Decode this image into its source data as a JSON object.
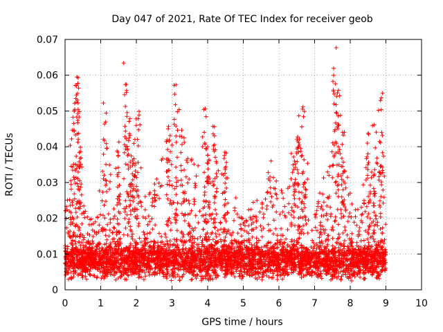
{
  "chart_data": {
    "type": "scatter",
    "title": "Day 047 of 2021, Rate Of TEC Index for receiver geob",
    "xlabel": "GPS time / hours",
    "ylabel": "ROTI / TECUs",
    "xlim": [
      0,
      10
    ],
    "ylim": [
      0,
      0.07
    ],
    "xticks": [
      0,
      1,
      2,
      3,
      4,
      5,
      6,
      7,
      8,
      9,
      10
    ],
    "yticks": [
      0,
      0.01,
      0.02,
      0.03,
      0.04,
      0.05,
      0.06,
      0.07
    ],
    "xtick_labels": [
      "0",
      "1",
      "2",
      "3",
      "4",
      "5",
      "6",
      "7",
      "8",
      "9",
      "10"
    ],
    "ytick_labels": [
      "0",
      "0.01",
      "0.02",
      "0.03",
      "0.04",
      "0.05",
      "0.06",
      "0.07"
    ],
    "grid": true,
    "marker": "plus",
    "color": "#ff0000",
    "data_range_x": [
      0,
      9
    ],
    "typical_baseline": 0.008,
    "envelope": {
      "x": [
        0.0,
        0.1,
        0.2,
        0.3,
        0.35,
        0.4,
        0.5,
        0.7,
        0.9,
        1.0,
        1.1,
        1.3,
        1.5,
        1.7,
        1.8,
        1.95,
        2.05,
        2.2,
        2.4,
        2.6,
        2.9,
        3.1,
        3.3,
        3.5,
        3.7,
        3.9,
        4.0,
        4.2,
        4.35,
        4.5,
        4.7,
        5.0,
        5.3,
        5.6,
        5.8,
        6.0,
        6.2,
        6.4,
        6.55,
        6.7,
        6.9,
        7.0,
        7.2,
        7.4,
        7.55,
        7.65,
        7.8,
        7.95,
        8.1,
        8.3,
        8.5,
        8.7,
        8.85,
        9.0
      ],
      "y": [
        0.034,
        0.03,
        0.045,
        0.061,
        0.06,
        0.054,
        0.025,
        0.02,
        0.02,
        0.036,
        0.053,
        0.03,
        0.04,
        0.065,
        0.05,
        0.042,
        0.05,
        0.025,
        0.03,
        0.032,
        0.048,
        0.059,
        0.045,
        0.038,
        0.035,
        0.051,
        0.04,
        0.047,
        0.03,
        0.04,
        0.03,
        0.02,
        0.025,
        0.03,
        0.037,
        0.03,
        0.025,
        0.04,
        0.05,
        0.052,
        0.035,
        0.025,
        0.03,
        0.035,
        0.068,
        0.058,
        0.045,
        0.03,
        0.025,
        0.025,
        0.045,
        0.048,
        0.055,
        0.03
      ]
    }
  }
}
